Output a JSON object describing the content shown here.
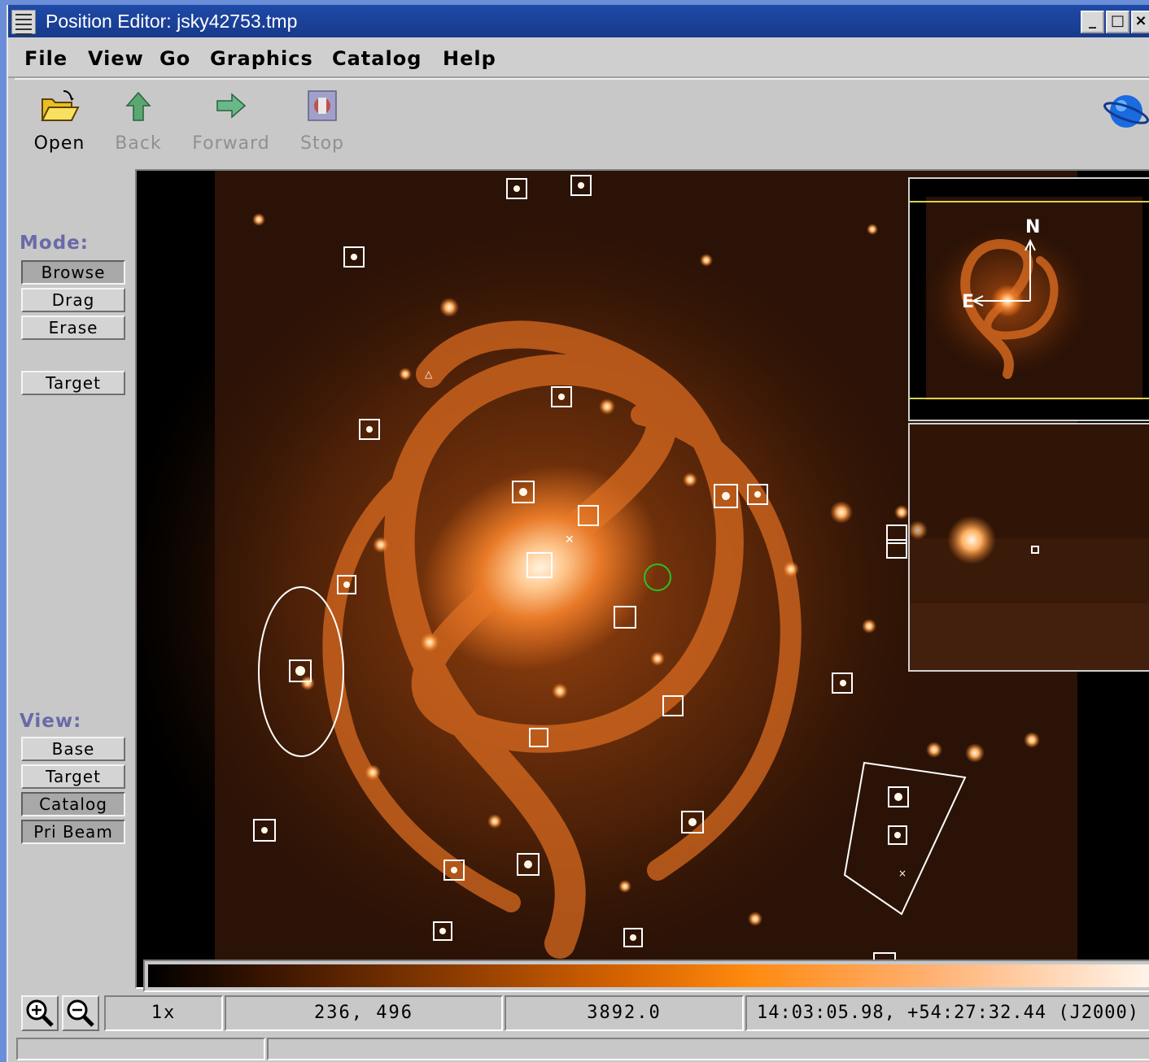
{
  "window": {
    "title": "Position Editor: jsky42753.tmp",
    "buttons": [
      "_",
      "□",
      "×"
    ]
  },
  "menubar": [
    "File",
    "View",
    "Go",
    "Graphics",
    "Catalog",
    "Help"
  ],
  "toolbar": {
    "open": "Open",
    "back": "Back",
    "forward": "Forward",
    "stop": "Stop"
  },
  "mode": {
    "label": "Mode:",
    "buttons": [
      "Browse",
      "Drag",
      "Erase"
    ],
    "active": "Browse",
    "target": "Target"
  },
  "view": {
    "label": "View:",
    "buttons": [
      "Base",
      "Target",
      "Catalog",
      "Pri Beam"
    ],
    "active": [
      "Catalog",
      "Pri Beam"
    ]
  },
  "panner": {
    "north": "N",
    "east": "E"
  },
  "status": {
    "zoom": "1x",
    "pixel": "236, 496",
    "value": "3892.0",
    "wcs": "14:03:05.98, +54:27:32.44 (J2000)"
  },
  "colors": {
    "title_bar": "#1f4aa8",
    "panel": "#c8c8c8",
    "mode_label": "#6a6aa8",
    "galaxy": "#e07020"
  }
}
